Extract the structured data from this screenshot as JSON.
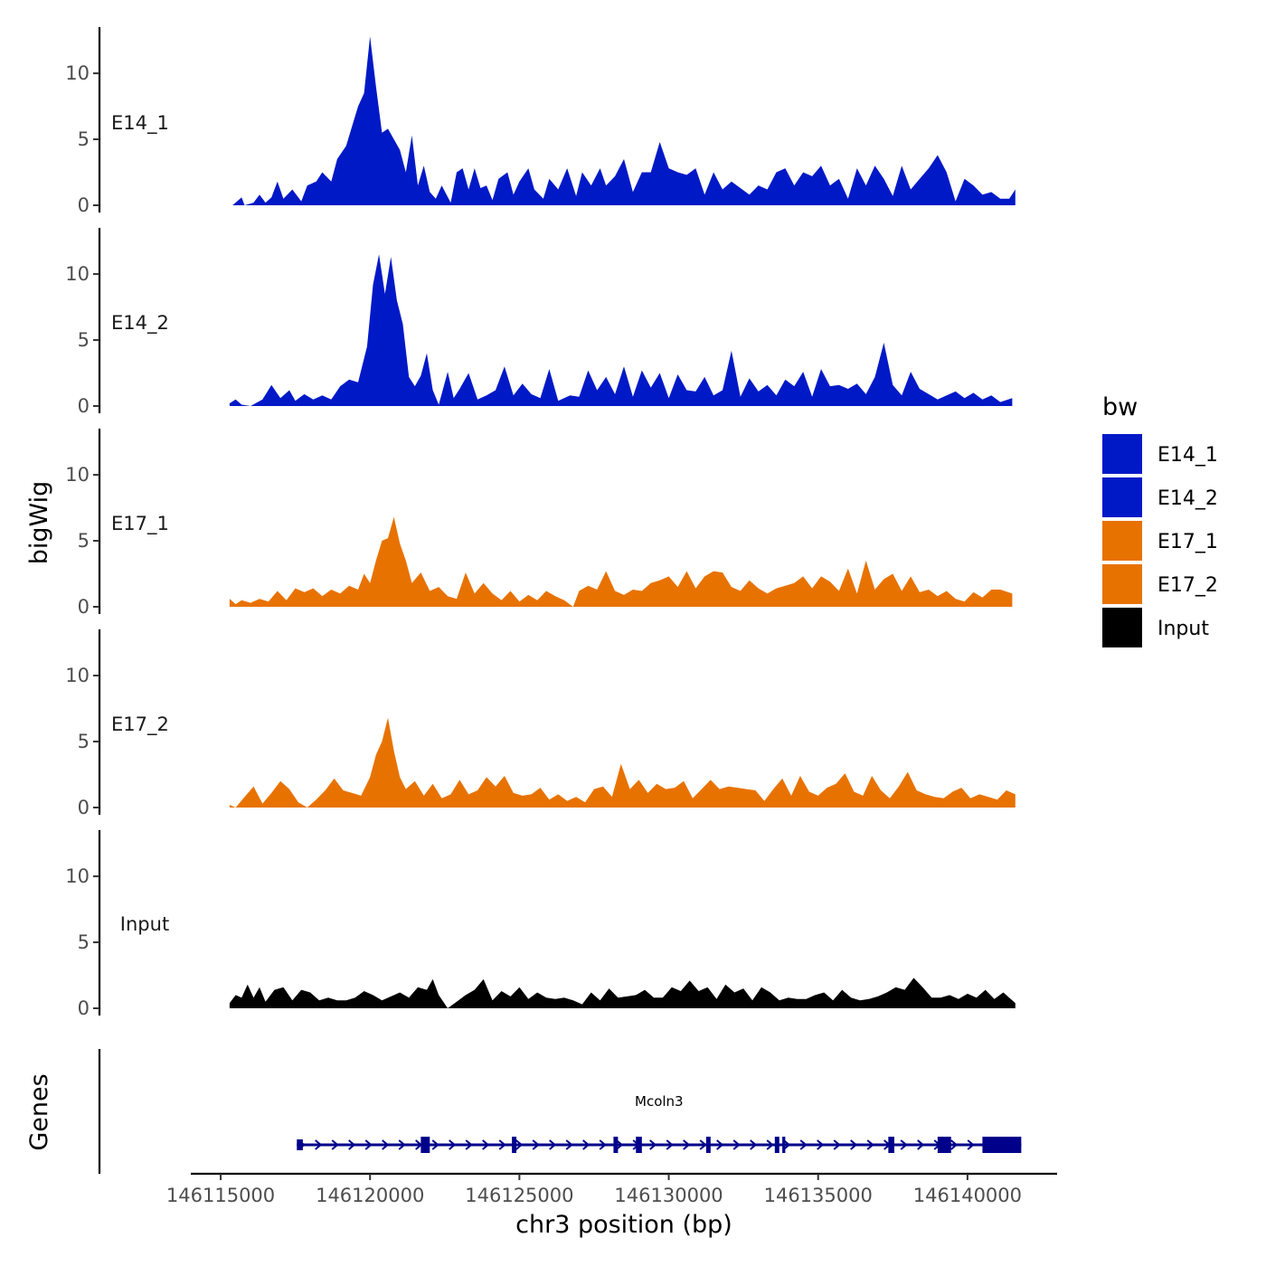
{
  "chart_data": {
    "type": "area",
    "xlabel": "chr3 position (bp)",
    "ylabel": "bigWig",
    "genes_label": "Genes",
    "xlim": [
      146114000,
      146143000
    ],
    "ylim": [
      0,
      13.5
    ],
    "x_ticks": [
      146115000,
      146120000,
      146125000,
      146130000,
      146135000,
      146140000
    ],
    "y_ticks": [
      0,
      5,
      10
    ],
    "legend": {
      "title": "bw",
      "placement": "right",
      "entries": [
        {
          "label": "E14_1",
          "color": "#0019c7"
        },
        {
          "label": "E14_2",
          "color": "#0019c7"
        },
        {
          "label": "E17_1",
          "color": "#e87200"
        },
        {
          "label": "E17_2",
          "color": "#e87200"
        },
        {
          "label": "Input",
          "color": "#000000"
        }
      ]
    },
    "series": [
      {
        "name": "E14_1",
        "color": "#0019c7",
        "x": [
          146115400,
          146115700,
          146115800,
          146116100,
          146116300,
          146116500,
          146116700,
          146116900,
          146117100,
          146117400,
          146117700,
          146117900,
          146118200,
          146118400,
          146118700,
          146118900,
          146119200,
          146119400,
          146119600,
          146119800,
          146120000,
          146120200,
          146120400,
          146120600,
          146120800,
          146121000,
          146121200,
          146121400,
          146121600,
          146121800,
          146122000,
          146122200,
          146122400,
          146122700,
          146122900,
          146123100,
          146123300,
          146123500,
          146123700,
          146123900,
          146124100,
          146124300,
          146124600,
          146124800,
          146125000,
          146125300,
          146125500,
          146125800,
          146126000,
          146126300,
          146126600,
          146126900,
          146127100,
          146127400,
          146127700,
          146127900,
          146128200,
          146128500,
          146128800,
          146129100,
          146129400,
          146129700,
          146130000,
          146130300,
          146130600,
          146130900,
          146131200,
          146131500,
          146131800,
          146132100,
          146132400,
          146132700,
          146133000,
          146133300,
          146133600,
          146133900,
          146134200,
          146134500,
          146134800,
          146135100,
          146135400,
          146135700,
          146136000,
          146136300,
          146136600,
          146136900,
          146137200,
          146137500,
          146137800,
          146138100,
          146138400,
          146138700,
          146139000,
          146139300,
          146139600,
          146139900,
          146140200,
          146140500,
          146140800,
          146141100,
          146141400,
          146141600
        ],
        "values": [
          0,
          0.6,
          0,
          0.2,
          0.8,
          0.2,
          0.6,
          1.8,
          0.5,
          1.2,
          0.3,
          1.5,
          1.8,
          2.5,
          1.8,
          3.5,
          4.5,
          6,
          7.5,
          8.5,
          12.8,
          9,
          5.5,
          5.8,
          5,
          4.2,
          2.5,
          5.3,
          1.5,
          3,
          1,
          0.5,
          1.5,
          0.2,
          2.5,
          2.8,
          1.2,
          2.8,
          1.3,
          1.5,
          0.4,
          2,
          2.5,
          0.8,
          1.8,
          2.8,
          1.2,
          0.5,
          2,
          1.2,
          2.8,
          0.7,
          2.5,
          1.5,
          2.8,
          1.5,
          2.2,
          3.5,
          1,
          2.5,
          2.5,
          4.8,
          2.8,
          2.5,
          2.3,
          2.8,
          0.8,
          2.5,
          1.2,
          1.8,
          1.3,
          0.8,
          1.5,
          1.2,
          2.5,
          2.8,
          1.5,
          2.5,
          2.2,
          3,
          1.5,
          2,
          0.5,
          2.8,
          1.5,
          3,
          2,
          0.7,
          3,
          1.2,
          2,
          2.8,
          3.8,
          2.5,
          0.3,
          2,
          1.5,
          0.8,
          1,
          0.5,
          0.5,
          1.2
        ]
      },
      {
        "name": "E14_2",
        "color": "#0019c7",
        "x": [
          146115300,
          146115500,
          146115700,
          146116000,
          146116400,
          146116700,
          146117000,
          146117300,
          146117500,
          146117800,
          146118100,
          146118400,
          146118700,
          146119000,
          146119300,
          146119600,
          146119900,
          146120100,
          146120300,
          146120500,
          146120700,
          146120900,
          146121100,
          146121300,
          146121500,
          146121700,
          146121900,
          146122100,
          146122300,
          146122600,
          146122800,
          146123000,
          146123300,
          146123600,
          146123900,
          146124200,
          146124500,
          146124800,
          146125100,
          146125400,
          146125700,
          146126000,
          146126300,
          146126700,
          146127000,
          146127300,
          146127600,
          146127900,
          146128200,
          146128500,
          146128800,
          146129100,
          146129400,
          146129700,
          146130000,
          146130300,
          146130600,
          146130900,
          146131200,
          146131500,
          146131800,
          146132100,
          146132400,
          146132700,
          146133000,
          146133300,
          146133600,
          146133900,
          146134200,
          146134500,
          146134800,
          146135100,
          146135400,
          146135700,
          146136000,
          146136300,
          146136600,
          146136900,
          146137200,
          146137500,
          146137800,
          146138100,
          146138400,
          146138700,
          146139000,
          146139300,
          146139600,
          146139900,
          146140200,
          146140500,
          146140800,
          146141100,
          146141500
        ],
        "values": [
          0.2,
          0.5,
          0.1,
          0,
          0.5,
          1.6,
          0.6,
          1.2,
          0.4,
          0.9,
          0.5,
          0.8,
          0.5,
          1.5,
          2,
          1.8,
          4.5,
          9.2,
          11.5,
          8.5,
          11.3,
          8,
          6.2,
          2.2,
          1.5,
          2.3,
          4,
          1.2,
          0.1,
          2.6,
          0.6,
          1.3,
          2.5,
          0.5,
          0.8,
          1.2,
          3,
          0.8,
          1.7,
          0.9,
          0.6,
          2.8,
          0.4,
          0.8,
          0.7,
          2.7,
          1.2,
          2.2,
          0.9,
          3,
          0.7,
          2.7,
          1.4,
          2.5,
          0.6,
          2.4,
          1.2,
          1.1,
          2.2,
          0.8,
          1.2,
          4.2,
          0.7,
          2.1,
          1.1,
          1.6,
          0.8,
          2,
          1.5,
          2.6,
          0.7,
          2.8,
          1.5,
          1.6,
          1.3,
          1.7,
          0.9,
          2.2,
          4.8,
          1.6,
          0.8,
          2.6,
          1.3,
          0.9,
          0.5,
          0.8,
          1.1,
          0.6,
          1.0,
          0.5,
          0.8,
          0.3,
          0.6
        ]
      },
      {
        "name": "E17_1",
        "color": "#e87200",
        "x": [
          146115300,
          146115500,
          146115700,
          146116000,
          146116300,
          146116600,
          146116900,
          146117200,
          146117500,
          146117800,
          146118100,
          146118400,
          146118700,
          146119000,
          146119300,
          146119600,
          146119800,
          146120000,
          146120200,
          146120400,
          146120600,
          146120800,
          146121000,
          146121200,
          146121400,
          146121700,
          146122000,
          146122300,
          146122600,
          146122900,
          146123200,
          146123500,
          146123800,
          146124100,
          146124400,
          146124700,
          146125000,
          146125300,
          146125600,
          146125900,
          146126200,
          146126500,
          146126800,
          146127000,
          146127300,
          146127600,
          146127900,
          146128200,
          146128500,
          146128800,
          146129100,
          146129400,
          146129700,
          146130000,
          146130300,
          146130600,
          146130900,
          146131200,
          146131500,
          146131800,
          146132100,
          146132400,
          146132700,
          146133000,
          146133300,
          146133600,
          146133900,
          146134200,
          146134500,
          146134800,
          146135100,
          146135400,
          146135700,
          146136000,
          146136300,
          146136600,
          146136900,
          146137200,
          146137500,
          146137800,
          146138100,
          146138400,
          146138700,
          146139000,
          146139300,
          146139600,
          146139900,
          146140200,
          146140500,
          146140800,
          146141100,
          146141500
        ],
        "values": [
          0.6,
          0.2,
          0.5,
          0.3,
          0.6,
          0.4,
          1.2,
          0.5,
          1.4,
          1.1,
          1.4,
          0.8,
          1.3,
          1.0,
          1.6,
          1.3,
          2.5,
          1.8,
          3.5,
          5,
          5.2,
          6.8,
          4.8,
          3.5,
          1.8,
          2.6,
          1.2,
          1.5,
          0.8,
          0.6,
          2.6,
          1.0,
          1.8,
          1.0,
          0.5,
          1.2,
          0.4,
          0.9,
          0.5,
          1.2,
          0.8,
          0.5,
          0,
          1.2,
          1.6,
          1.3,
          2.7,
          1.2,
          0.9,
          1.3,
          1.2,
          1.8,
          2,
          2.3,
          1.5,
          2.7,
          1.4,
          2.3,
          2.7,
          2.6,
          1.5,
          1.2,
          2.0,
          1.4,
          1.0,
          1.4,
          1.6,
          1.8,
          2.3,
          1.4,
          2.3,
          1.9,
          1.2,
          2.9,
          1.0,
          3.5,
          1.3,
          2.1,
          2.5,
          1.2,
          2.3,
          1.1,
          1.3,
          0.8,
          1.2,
          0.6,
          0.4,
          1.1,
          0.7,
          1.3,
          1.3,
          1.0
        ]
      },
      {
        "name": "E17_2",
        "color": "#e87200",
        "x": [
          146115300,
          146115500,
          146115800,
          146116100,
          146116400,
          146116700,
          146117000,
          146117300,
          146117600,
          146117900,
          146118200,
          146118500,
          146118800,
          146119100,
          146119400,
          146119700,
          146120000,
          146120200,
          146120400,
          146120600,
          146120800,
          146121000,
          146121200,
          146121500,
          146121800,
          146122100,
          146122400,
          146122700,
          146123000,
          146123300,
          146123600,
          146123900,
          146124200,
          146124500,
          146124800,
          146125100,
          146125400,
          146125700,
          146126000,
          146126300,
          146126600,
          146126900,
          146127200,
          146127500,
          146127800,
          146128100,
          146128400,
          146128700,
          146129000,
          146129300,
          146129600,
          146129900,
          146130200,
          146130500,
          146130800,
          146131100,
          146131400,
          146131700,
          146132000,
          146132300,
          146132600,
          146132900,
          146133200,
          146133500,
          146133800,
          146134100,
          146134400,
          146134700,
          146135000,
          146135300,
          146135600,
          146135900,
          146136200,
          146136500,
          146136800,
          146137100,
          146137400,
          146137700,
          146138000,
          146138300,
          146138600,
          146138900,
          146139200,
          146139500,
          146139800,
          146140100,
          146140400,
          146140700,
          146141000,
          146141300,
          146141600
        ],
        "values": [
          0.2,
          0.0,
          0.8,
          1.6,
          0.3,
          1.1,
          2.0,
          1.4,
          0.4,
          0.0,
          0.6,
          1.3,
          2.2,
          1.3,
          1.1,
          0.9,
          2.3,
          4.0,
          5.0,
          6.8,
          4.3,
          2.3,
          1.4,
          2.0,
          0.9,
          1.8,
          0.7,
          1.0,
          2.1,
          1.0,
          1.3,
          2.3,
          1.6,
          2.4,
          1.1,
          0.9,
          1.0,
          1.5,
          0.6,
          1.0,
          0.5,
          0.8,
          0.4,
          1.4,
          1.6,
          0.8,
          3.3,
          1.4,
          2.1,
          1.1,
          1.8,
          1.4,
          1.5,
          2.0,
          0.7,
          1.4,
          2.1,
          1.4,
          1.6,
          1.5,
          1.4,
          1.3,
          0.5,
          1.4,
          2.2,
          0.9,
          2.4,
          1.2,
          0.9,
          1.5,
          1.8,
          2.6,
          1.2,
          0.9,
          2.4,
          1.3,
          0.7,
          1.6,
          2.7,
          1.3,
          1.0,
          0.8,
          0.7,
          1.2,
          1.5,
          0.7,
          1.0,
          0.8,
          0.6,
          1.3,
          1.0
        ]
      },
      {
        "name": "Input",
        "color": "#000000",
        "x": [
          146115300,
          146115500,
          146115700,
          146115900,
          146116100,
          146116300,
          146116500,
          146116800,
          146117100,
          146117400,
          146117700,
          146118000,
          146118300,
          146118600,
          146118900,
          146119200,
          146119500,
          146119800,
          146120100,
          146120400,
          146120700,
          146121000,
          146121300,
          146121600,
          146121900,
          146122100,
          146122300,
          146122600,
          146122900,
          146123200,
          146123500,
          146123800,
          146124100,
          146124400,
          146124700,
          146125000,
          146125300,
          146125600,
          146125900,
          146126200,
          146126500,
          146126800,
          146127100,
          146127400,
          146127700,
          146128000,
          146128300,
          146128600,
          146128900,
          146129200,
          146129500,
          146129800,
          146130100,
          146130400,
          146130700,
          146131000,
          146131300,
          146131600,
          146131900,
          146132200,
          146132500,
          146132800,
          146133100,
          146133400,
          146133700,
          146134000,
          146134300,
          146134600,
          146134900,
          146135200,
          146135500,
          146135800,
          146136100,
          146136400,
          146136700,
          146137000,
          146137300,
          146137600,
          146137900,
          146138200,
          146138500,
          146138800,
          146139100,
          146139400,
          146139700,
          146140000,
          146140300,
          146140600,
          146140900,
          146141200,
          146141600
        ],
        "values": [
          0.4,
          1.0,
          0.8,
          1.8,
          0.8,
          1.6,
          0.5,
          1.4,
          1.6,
          0.6,
          1.4,
          1.2,
          0.6,
          0.8,
          0.6,
          0.6,
          0.8,
          1.3,
          1.0,
          0.6,
          0.9,
          1.2,
          0.8,
          1.6,
          1.4,
          2.2,
          1.0,
          0.0,
          0.5,
          1.0,
          1.4,
          2.2,
          0.6,
          1.3,
          0.9,
          1.6,
          0.7,
          1.2,
          0.8,
          0.7,
          0.8,
          0.6,
          0.3,
          1.2,
          0.6,
          1.5,
          0.8,
          0.9,
          1.0,
          1.4,
          0.8,
          0.8,
          1.6,
          1.3,
          2.1,
          1.3,
          1.6,
          0.7,
          1.8,
          1.2,
          1.5,
          0.6,
          1.6,
          1.2,
          0.6,
          0.8,
          0.7,
          0.7,
          1.0,
          1.2,
          0.6,
          1.4,
          0.8,
          0.6,
          0.7,
          0.9,
          1.2,
          1.6,
          1.4,
          2.3,
          1.6,
          0.8,
          0.8,
          1.0,
          0.7,
          1.1,
          0.8,
          1.4,
          0.7,
          1.2,
          0.4
        ]
      }
    ],
    "gene": {
      "name": "Mcoln3",
      "start": 146117550,
      "end": 146141800,
      "strand": "+",
      "color": "#00008b",
      "exons": [
        {
          "start": 146117550,
          "end": 146117750,
          "kind": "utr"
        },
        {
          "start": 146121700,
          "end": 146122000,
          "kind": "cds"
        },
        {
          "start": 146124750,
          "end": 146124900,
          "kind": "cds"
        },
        {
          "start": 146128150,
          "end": 146128300,
          "kind": "cds"
        },
        {
          "start": 146128900,
          "end": 146129100,
          "kind": "cds"
        },
        {
          "start": 146131250,
          "end": 146131400,
          "kind": "cds"
        },
        {
          "start": 146133550,
          "end": 146133700,
          "kind": "cds"
        },
        {
          "start": 146133800,
          "end": 146133900,
          "kind": "cds"
        },
        {
          "start": 146137350,
          "end": 146137550,
          "kind": "cds"
        },
        {
          "start": 146139000,
          "end": 146139450,
          "kind": "cds"
        },
        {
          "start": 146140500,
          "end": 146141800,
          "kind": "utr"
        }
      ]
    }
  }
}
